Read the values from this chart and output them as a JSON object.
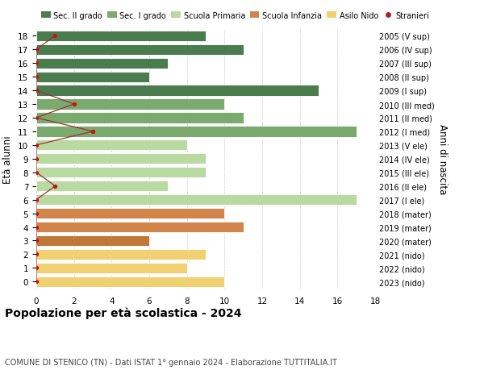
{
  "ages": [
    18,
    17,
    16,
    15,
    14,
    13,
    12,
    11,
    10,
    9,
    8,
    7,
    6,
    5,
    4,
    3,
    2,
    1,
    0
  ],
  "years": [
    "2005 (V sup)",
    "2006 (IV sup)",
    "2007 (III sup)",
    "2008 (II sup)",
    "2009 (I sup)",
    "2010 (III med)",
    "2011 (II med)",
    "2012 (I med)",
    "2013 (V ele)",
    "2014 (IV ele)",
    "2015 (III ele)",
    "2016 (II ele)",
    "2017 (I ele)",
    "2018 (mater)",
    "2019 (mater)",
    "2020 (mater)",
    "2021 (nido)",
    "2022 (nido)",
    "2023 (nido)"
  ],
  "values": [
    9,
    11,
    7,
    6,
    15,
    10,
    11,
    17,
    8,
    9,
    9,
    7,
    17,
    10,
    11,
    6,
    9,
    8,
    10
  ],
  "bar_colors": [
    "#4a7c4e",
    "#4a7c4e",
    "#4a7c4e",
    "#4a7c4e",
    "#4a7c4e",
    "#7aaa6e",
    "#7aaa6e",
    "#7aaa6e",
    "#b8d9a0",
    "#b8d9a0",
    "#b8d9a0",
    "#b8d9a0",
    "#b8d9a0",
    "#d2854a",
    "#d2854a",
    "#c07838",
    "#f0d070",
    "#f0d070",
    "#f0d070"
  ],
  "stranieri_x": [
    1,
    0,
    0,
    0,
    0,
    2,
    0,
    3,
    0,
    0,
    0,
    1,
    0,
    0,
    0,
    0,
    0,
    0,
    0
  ],
  "legend_labels": [
    "Sec. II grado",
    "Sec. I grado",
    "Scuola Primaria",
    "Scuola Infanzia",
    "Asilo Nido",
    "Stranieri"
  ],
  "legend_colors": [
    "#4a7c4e",
    "#7aaa6e",
    "#b8d9a0",
    "#d2854a",
    "#f0d070",
    "#aa2222"
  ],
  "ylabel_left": "Età alunni",
  "ylabel_right": "Anni di nascita",
  "title": "Popolazione per età scolastica - 2024",
  "subtitle": "COMUNE DI STENICO (TN) - Dati ISTAT 1° gennaio 2024 - Elaborazione TUTTITALIA.IT",
  "xlim": [
    0,
    18
  ],
  "xticks": [
    0,
    2,
    4,
    6,
    8,
    10,
    12,
    14,
    16,
    18
  ],
  "background_color": "#ffffff",
  "grid_color": "#cccccc",
  "stranieri_line_color": "#993333",
  "stranieri_dot_color": "#cc1111"
}
